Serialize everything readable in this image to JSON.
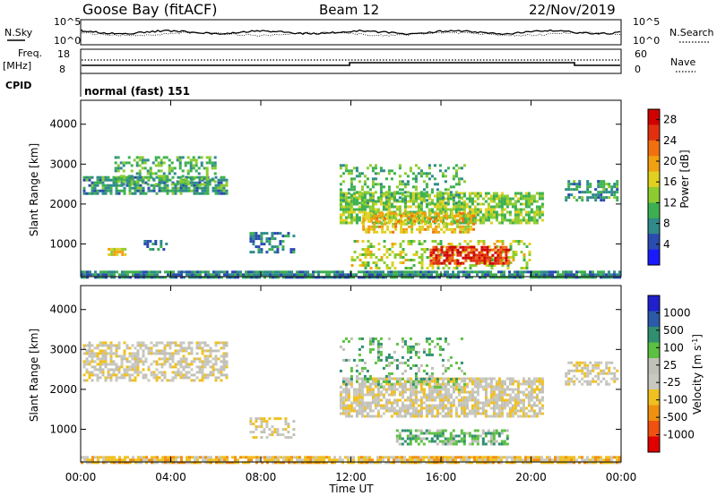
{
  "header": {
    "station": "Goose Bay (fitACF)",
    "beam": "Beam 12",
    "date": "22/Nov/2019"
  },
  "noise_panel": {
    "left_label": "N.Sky",
    "right_label": "N.Search",
    "left_ticks": [
      "10^5",
      "10^0"
    ],
    "right_ticks": [
      "10^5",
      "10^0"
    ]
  },
  "freq_panel": {
    "left_label_1": "Freq.",
    "left_label_2": "[MHz]",
    "left_ticks": [
      "18",
      "8"
    ],
    "right_label": "Nave",
    "right_ticks": [
      "60",
      "0"
    ],
    "cpid_label": "CPID",
    "mode_text": "normal (fast) 151"
  },
  "colors": {
    "power": [
      "#1a1aff",
      "#2a4bb0",
      "#2f8a8a",
      "#3cb050",
      "#8ccc30",
      "#e0d020",
      "#f0a010",
      "#f07010",
      "#e03010",
      "#d00000"
    ],
    "velocity": [
      "#2020cc",
      "#2a5aa8",
      "#2f8f70",
      "#5cc040",
      "#c0c0b8",
      "#c8c8c0",
      "#f0c020",
      "#f09010",
      "#f05010",
      "#e00000"
    ]
  },
  "chart_data": [
    {
      "type": "heatmap",
      "name": "power",
      "ylabel": "Slant Range [km]",
      "xlabel": "Time UT",
      "x_ticks": [
        "00:00",
        "04:00",
        "08:00",
        "12:00",
        "16:00",
        "20:00",
        "00:00"
      ],
      "y_ticks": [
        "1000",
        "2000",
        "3000",
        "4000"
      ],
      "ylim": [
        180,
        4600
      ],
      "xlim_hours": [
        0,
        24
      ],
      "colorbar": {
        "label": "Power [dB]",
        "ticks": [
          "4",
          "8",
          "12",
          "16",
          "20",
          "24",
          "28"
        ],
        "range": [
          0,
          30
        ]
      },
      "regions": [
        {
          "t0": 0.0,
          "t1": 24.0,
          "r0": 180,
          "r1": 330,
          "level": 8,
          "density": 0.85
        },
        {
          "t0": 0.1,
          "t1": 6.5,
          "r0": 2250,
          "r1": 2700,
          "level": 9,
          "density": 0.7
        },
        {
          "t0": 1.5,
          "t1": 6.0,
          "r0": 2500,
          "r1": 3200,
          "level": 11,
          "density": 0.45
        },
        {
          "t0": 1.2,
          "t1": 2.0,
          "r0": 700,
          "r1": 900,
          "level": 17,
          "density": 0.7
        },
        {
          "t0": 2.8,
          "t1": 3.8,
          "r0": 850,
          "r1": 1100,
          "level": 7,
          "density": 0.5
        },
        {
          "t0": 7.5,
          "t1": 9.5,
          "r0": 800,
          "r1": 1300,
          "level": 7,
          "density": 0.5
        },
        {
          "t0": 11.5,
          "t1": 20.5,
          "r0": 1500,
          "r1": 2300,
          "level": 13,
          "density": 0.7
        },
        {
          "t0": 12.5,
          "t1": 17.5,
          "r0": 1300,
          "r1": 1800,
          "level": 18,
          "density": 0.6
        },
        {
          "t0": 11.5,
          "t1": 17.0,
          "r0": 2000,
          "r1": 3000,
          "level": 11,
          "density": 0.3
        },
        {
          "t0": 12.0,
          "t1": 20.0,
          "r0": 400,
          "r1": 1100,
          "level": 15,
          "density": 0.4
        },
        {
          "t0": 15.5,
          "t1": 19.0,
          "r0": 500,
          "r1": 950,
          "level": 26,
          "density": 0.75
        },
        {
          "t0": 21.5,
          "t1": 23.8,
          "r0": 2100,
          "r1": 2600,
          "level": 9,
          "density": 0.6
        }
      ]
    },
    {
      "type": "heatmap",
      "name": "velocity",
      "ylabel": "Slant Range [km]",
      "xlabel": "Time UT",
      "x_ticks": [
        "00:00",
        "04:00",
        "08:00",
        "12:00",
        "16:00",
        "20:00",
        "00:00"
      ],
      "y_ticks": [
        "1000",
        "2000",
        "3000",
        "4000"
      ],
      "ylim": [
        180,
        4600
      ],
      "xlim_hours": [
        0,
        24
      ],
      "colorbar": {
        "label": "Velocity [m s^-1]",
        "ticks": [
          "1000",
          "500",
          "100",
          "25",
          "-25",
          "-100",
          "-500",
          "-1000"
        ],
        "range": [
          -1000,
          1000
        ]
      },
      "regions": [
        {
          "t0": 0.0,
          "t1": 24.0,
          "r0": 180,
          "r1": 330,
          "level": 6,
          "density": 0.85
        },
        {
          "t0": 0.1,
          "t1": 6.5,
          "r0": 2200,
          "r1": 3200,
          "level": 5,
          "density": 0.55
        },
        {
          "t0": 7.5,
          "t1": 9.5,
          "r0": 800,
          "r1": 1300,
          "level": 5,
          "density": 0.5
        },
        {
          "t0": 11.5,
          "t1": 20.5,
          "r0": 1300,
          "r1": 2300,
          "level": 5,
          "density": 0.75
        },
        {
          "t0": 11.5,
          "t1": 17.0,
          "r0": 2000,
          "r1": 3300,
          "level": 3,
          "density": 0.25
        },
        {
          "t0": 14.0,
          "t1": 19.0,
          "r0": 600,
          "r1": 1000,
          "level": 3,
          "density": 0.6
        },
        {
          "t0": 21.5,
          "t1": 23.8,
          "r0": 2100,
          "r1": 2700,
          "level": 5,
          "density": 0.55
        }
      ]
    }
  ]
}
